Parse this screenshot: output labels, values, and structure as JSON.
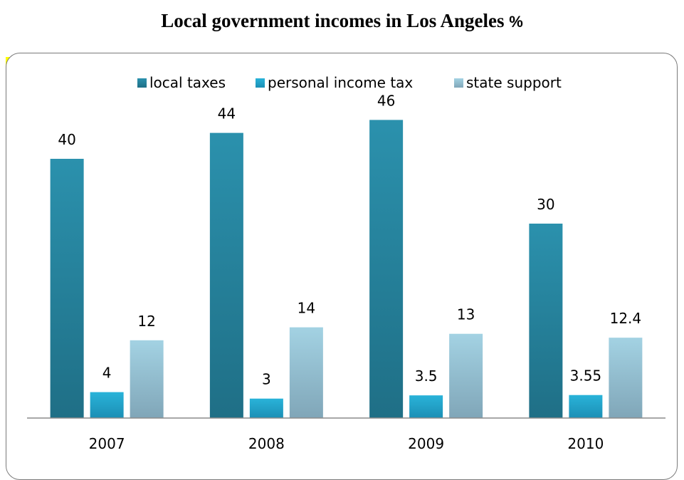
{
  "title": "Local government incomes in Los Angeles",
  "title_unit": "%",
  "chart_data": {
    "type": "bar",
    "categories": [
      "2007",
      "2008",
      "2009",
      "2010"
    ],
    "series": [
      {
        "name": "local taxes",
        "values": [
          40,
          44,
          46,
          30
        ],
        "labels": [
          "40",
          "44",
          "46",
          "30"
        ],
        "color": "#2b91ad",
        "color_dark": "#1f6f86"
      },
      {
        "name": "personal income tax",
        "values": [
          4,
          3,
          3.5,
          3.55
        ],
        "labels": [
          "4",
          "3",
          "3.5",
          "3.55"
        ],
        "color": "#29b3d9",
        "color_dark": "#1c8fb5"
      },
      {
        "name": "state support",
        "values": [
          12,
          14,
          13,
          12.4
        ],
        "labels": [
          "12",
          "14",
          "13",
          "12.4"
        ],
        "color": "#a3d2e3",
        "color_dark": "#80a6b8"
      }
    ],
    "title": "Local government incomes in Los Angeles %",
    "xlabel": "",
    "ylabel": "",
    "ylim": [
      0,
      50
    ],
    "grid": false,
    "legend_position": "top"
  }
}
